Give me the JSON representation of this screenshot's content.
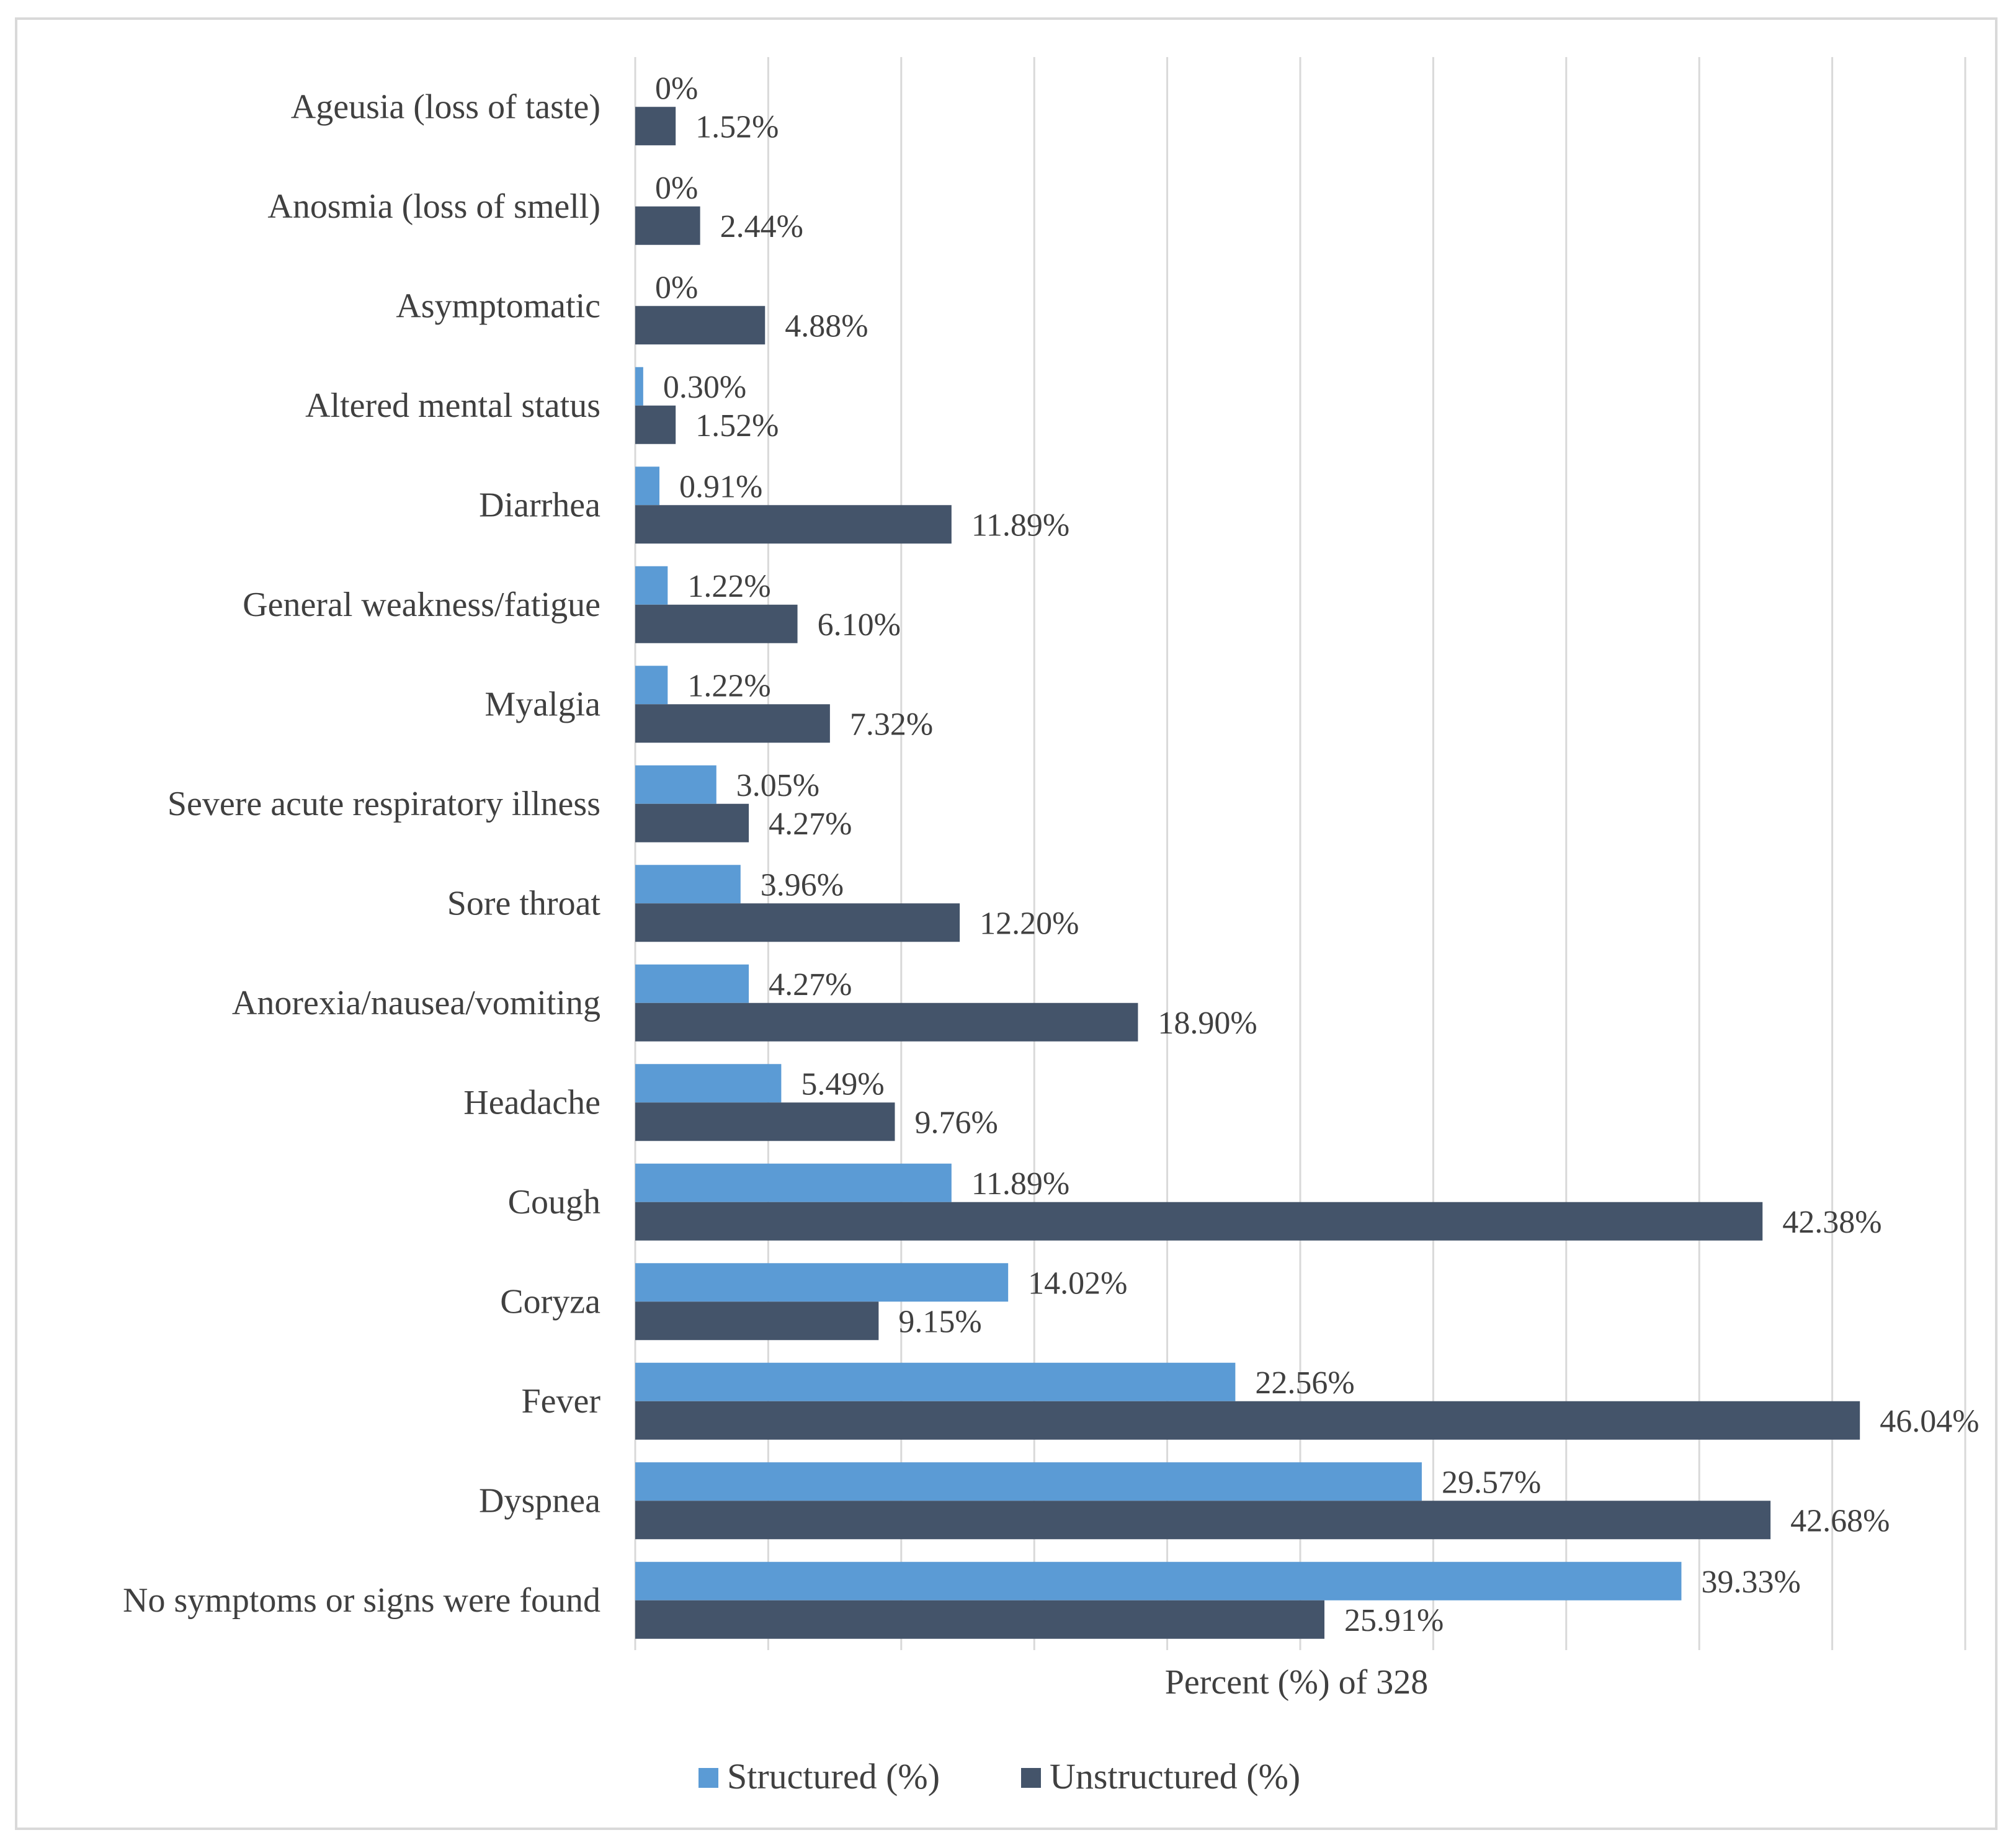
{
  "chart_data": {
    "type": "bar",
    "orientation": "horizontal",
    "title": "",
    "xlabel": "Percent (%) of 328",
    "ylabel": "",
    "xlim": [
      0,
      50
    ],
    "grid": true,
    "legend_position": "bottom",
    "categories": [
      "Ageusia (loss of taste)",
      "Anosmia (loss of smell)",
      "Asymptomatic",
      "Altered mental status",
      "Diarrhea",
      "General weakness/fatigue",
      "Myalgia",
      "Severe acute respiratory illness",
      "Sore throat",
      "Anorexia/nausea/vomiting",
      "Headache",
      "Cough",
      "Coryza",
      "Fever",
      "Dyspnea",
      "No symptoms or signs were found"
    ],
    "series": [
      {
        "name": "Structured (%)",
        "color": "#5b9bd5",
        "values": [
          0,
          0,
          0,
          0.3,
          0.91,
          1.22,
          1.22,
          3.05,
          3.96,
          4.27,
          5.49,
          11.89,
          14.02,
          22.56,
          29.57,
          39.33
        ],
        "labels": [
          "0%",
          "0%",
          "0%",
          "0.30%",
          "0.91%",
          "1.22%",
          "1.22%",
          "3.05%",
          "3.96%",
          "4.27%",
          "5.49%",
          "11.89%",
          "14.02%",
          "22.56%",
          "29.57%",
          "39.33%"
        ]
      },
      {
        "name": "Unstructured (%)",
        "color": "#44546a",
        "values": [
          1.52,
          2.44,
          4.88,
          1.52,
          11.89,
          6.1,
          7.32,
          4.27,
          12.2,
          18.9,
          9.76,
          42.38,
          9.15,
          46.04,
          42.68,
          25.91
        ],
        "labels": [
          "1.52%",
          "2.44%",
          "4.88%",
          "1.52%",
          "11.89%",
          "6.10%",
          "7.32%",
          "4.27%",
          "12.20%",
          "18.90%",
          "9.76%",
          "42.38%",
          "9.15%",
          "46.04%",
          "42.68%",
          "25.91%"
        ]
      }
    ]
  },
  "colors": {
    "gridline": "#d9d9d9",
    "text": "#404040",
    "frame": "#d9d9d9"
  }
}
